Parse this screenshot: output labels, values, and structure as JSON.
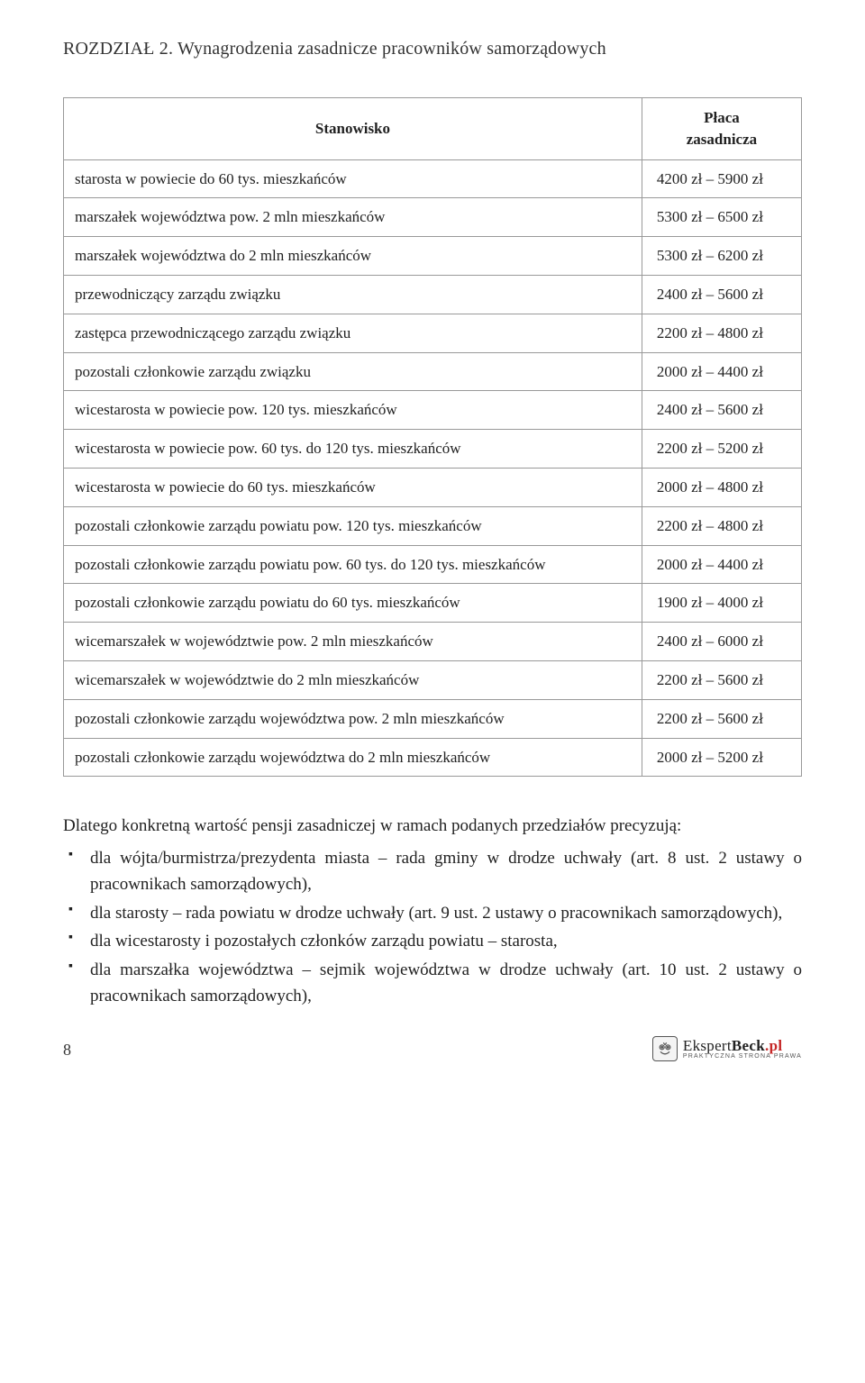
{
  "chapter": "ROZDZIAŁ 2. Wynagrodzenia zasadnicze pracowników samorządowych",
  "table": {
    "columns": [
      "Stanowisko",
      "Płaca\nzasadnicza"
    ],
    "rows": [
      [
        "starosta w powiecie do 60 tys. mieszkańców",
        "4200 zł – 5900 zł"
      ],
      [
        "marszałek województwa pow. 2 mln mieszkańców",
        "5300 zł – 6500 zł"
      ],
      [
        "marszałek województwa do 2 mln mieszkańców",
        "5300 zł – 6200 zł"
      ],
      [
        "przewodniczący zarządu związku",
        "2400 zł – 5600 zł"
      ],
      [
        "zastępca przewodniczącego zarządu związku",
        "2200 zł – 4800 zł"
      ],
      [
        "pozostali członkowie zarządu związku",
        "2000 zł – 4400 zł"
      ],
      [
        "wicestarosta w powiecie pow. 120 tys. mieszkańców",
        "2400 zł – 5600 zł"
      ],
      [
        "wicestarosta w powiecie pow. 60 tys. do 120 tys. mieszkańców",
        "2200 zł – 5200 zł"
      ],
      [
        "wicestarosta w powiecie do 60 tys. mieszkańców",
        "2000 zł – 4800 zł"
      ],
      [
        "pozostali członkowie zarządu powiatu pow. 120 tys. mieszkańców",
        "2200 zł – 4800 zł"
      ],
      [
        "pozostali członkowie zarządu powiatu pow. 60 tys. do 120 tys. mieszkańców",
        "2000 zł – 4400 zł"
      ],
      [
        "pozostali członkowie zarządu powiatu do 60 tys. mieszkańców",
        "1900 zł – 4000 zł"
      ],
      [
        "wicemarszałek w województwie pow. 2 mln mieszkańców",
        "2400 zł – 6000 zł"
      ],
      [
        "wicemarszałek w województwie do 2 mln mieszkańców",
        "2200 zł – 5600 zł"
      ],
      [
        "pozostali członkowie zarządu województwa pow. 2 mln mieszkańców",
        "2200 zł – 5600 zł"
      ],
      [
        "pozostali członkowie zarządu województwa do 2 mln mieszkańców",
        "2000 zł – 5200 zł"
      ]
    ]
  },
  "para": "Dlatego konkretną wartość pensji zasadniczej w ramach podanych przedziałów precyzują:",
  "bullets": [
    "dla wójta/burmistrza/prezydenta miasta – rada gminy w drodze uchwały (art. 8 ust. 2 ustawy o pracownikach samorządowych),",
    "dla starosty – rada powiatu w drodze uchwały (art. 9 ust. 2 ustawy o pracownikach samorządowych),",
    "dla wicestarosty i pozostałych członków zarządu powiatu – starosta,",
    "dla marszałka województwa – sejmik województwa w drodze uchwały (art. 10 ust. 2 ustawy o pracownikach samorządowych),"
  ],
  "page_number": "8",
  "brand": {
    "ekspert": "Ekspert",
    "beck": "Beck",
    "tld": ".pl",
    "sub": "PRAKTYCZNA STRONA PRAWA"
  }
}
